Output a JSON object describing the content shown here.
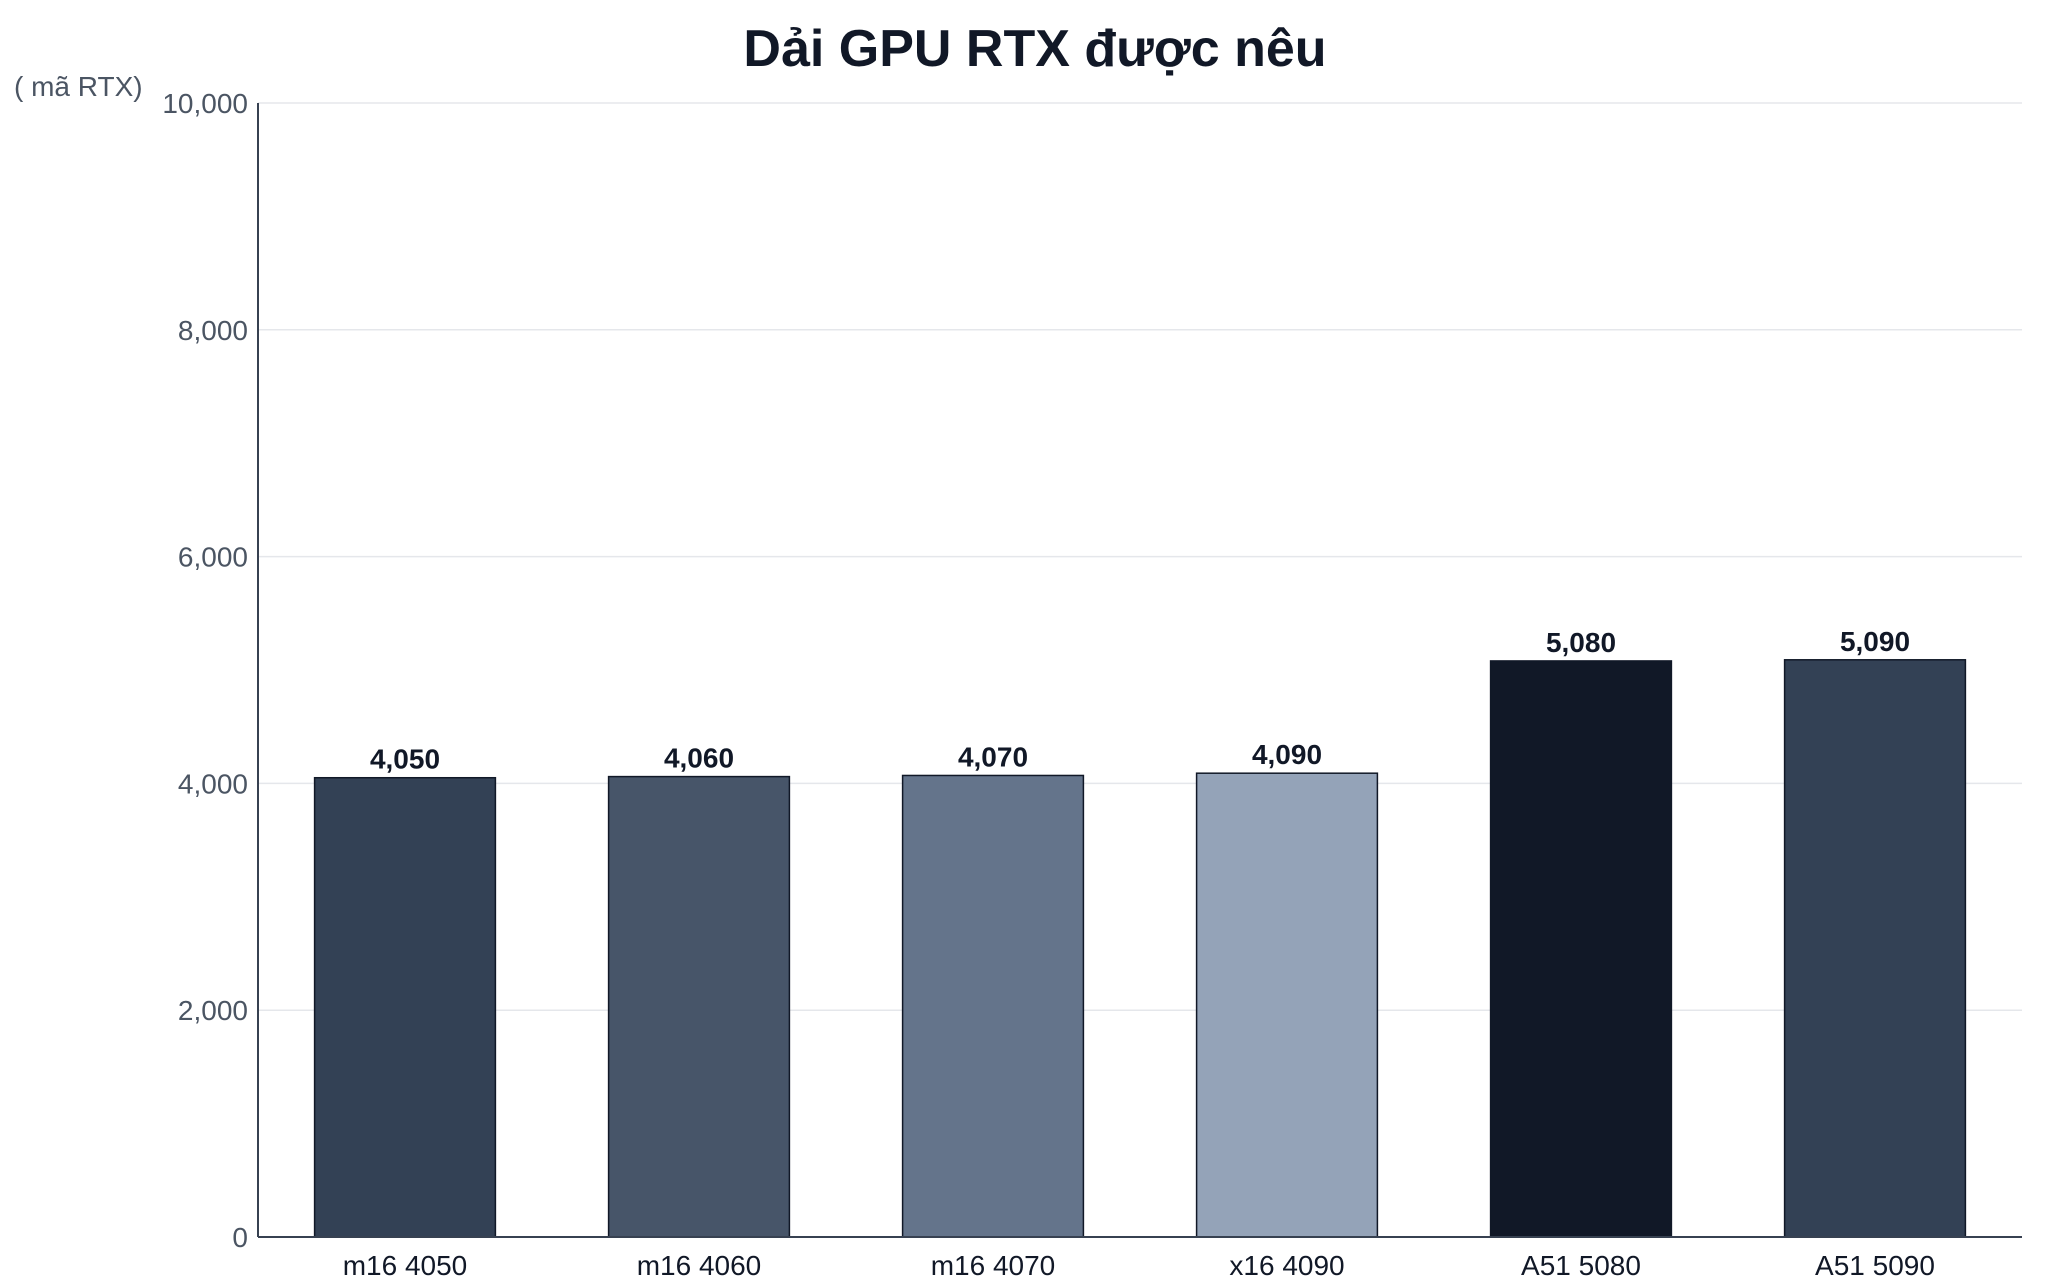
{
  "chart_data": {
    "type": "bar",
    "title": "Dải GPU RTX được nêu",
    "ylabel": "( mã RTX)",
    "xlabel": "",
    "categories": [
      "m16 4050",
      "m16 4060",
      "m16 4070",
      "x16 4090",
      "A51 5080",
      "A51 5090"
    ],
    "values": [
      4050,
      4060,
      4070,
      4090,
      5080,
      5090
    ],
    "value_labels": [
      "4,050",
      "4,060",
      "4,070",
      "4,090",
      "5,080",
      "5,090"
    ],
    "bar_colors": [
      "#334155",
      "#475569",
      "#64748b",
      "#94a3b8",
      "#111827",
      "#334155"
    ],
    "ylim": [
      0,
      10000
    ],
    "y_ticks": [
      0,
      2000,
      4000,
      6000,
      8000,
      10000
    ],
    "y_tick_labels": [
      "0",
      "2,000",
      "4,000",
      "6,000",
      "8,000",
      "10,000"
    ],
    "grid": true,
    "legend": "none"
  }
}
